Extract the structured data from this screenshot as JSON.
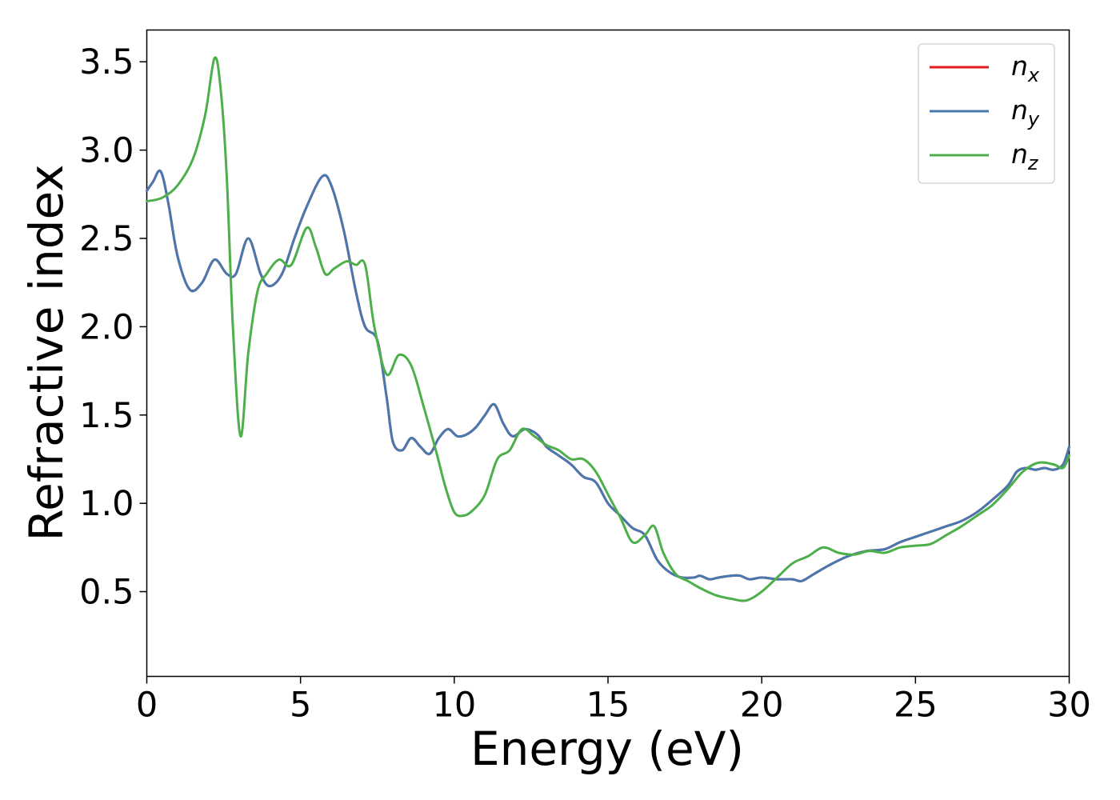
{
  "chart_data": {
    "type": "line",
    "xlabel": "Energy (eV)",
    "ylabel": "Refractive index",
    "xlim": [
      0,
      30
    ],
    "ylim": [
      0.02,
      3.68
    ],
    "xticks": [
      0,
      5,
      10,
      15,
      20,
      25,
      30
    ],
    "xtick_labels": [
      "0",
      "5",
      "10",
      "15",
      "20",
      "25",
      "30"
    ],
    "yticks": [
      0.5,
      1.0,
      1.5,
      2.0,
      2.5,
      3.0,
      3.5
    ],
    "ytick_labels": [
      "0.5",
      "1.0",
      "1.5",
      "2.0",
      "2.5",
      "3.0",
      "3.5"
    ],
    "grid": false,
    "legend_position": "top-right",
    "series": [
      {
        "name": "n",
        "subscript": "x",
        "color": "#e41a1c",
        "x": [
          0,
          0.2,
          0.45,
          0.7,
          1.0,
          1.4,
          1.8,
          2.2,
          2.6,
          2.9,
          3.3,
          3.7,
          4.0,
          4.4,
          4.8,
          5.2,
          5.7,
          6.0,
          6.4,
          6.8,
          7.1,
          7.5,
          7.8,
          8.0,
          8.3,
          8.6,
          8.9,
          9.2,
          9.5,
          9.8,
          10.1,
          10.4,
          10.7,
          11.0,
          11.3,
          11.6,
          11.9,
          12.3,
          12.7,
          13.0,
          13.4,
          13.8,
          14.2,
          14.6,
          15.0,
          15.4,
          15.8,
          16.2,
          16.6,
          17.0,
          17.4,
          17.8,
          18.0,
          18.3,
          18.6,
          19.0,
          19.3,
          19.6,
          20.0,
          20.5,
          21.0,
          21.3,
          21.7,
          22.2,
          22.8,
          23.4,
          24.0,
          24.5,
          25.0,
          25.5,
          26.0,
          26.5,
          27.0,
          27.5,
          28.0,
          28.3,
          28.6,
          28.9,
          29.2,
          29.5,
          29.8,
          30.0
        ],
        "y": [
          2.77,
          2.82,
          2.88,
          2.7,
          2.4,
          2.21,
          2.25,
          2.38,
          2.3,
          2.3,
          2.5,
          2.3,
          2.23,
          2.3,
          2.5,
          2.68,
          2.85,
          2.8,
          2.55,
          2.2,
          2.0,
          1.92,
          1.6,
          1.35,
          1.3,
          1.37,
          1.32,
          1.28,
          1.37,
          1.42,
          1.38,
          1.39,
          1.43,
          1.5,
          1.56,
          1.45,
          1.38,
          1.42,
          1.39,
          1.32,
          1.27,
          1.22,
          1.15,
          1.12,
          1.0,
          0.93,
          0.86,
          0.82,
          0.68,
          0.61,
          0.58,
          0.58,
          0.59,
          0.57,
          0.58,
          0.59,
          0.59,
          0.57,
          0.58,
          0.57,
          0.57,
          0.56,
          0.6,
          0.65,
          0.7,
          0.73,
          0.74,
          0.78,
          0.81,
          0.84,
          0.87,
          0.9,
          0.95,
          1.02,
          1.1,
          1.18,
          1.2,
          1.19,
          1.2,
          1.19,
          1.22,
          1.32
        ]
      },
      {
        "name": "n",
        "subscript": "y",
        "color": "#4878b0",
        "x": [
          0,
          0.2,
          0.45,
          0.7,
          1.0,
          1.4,
          1.8,
          2.2,
          2.6,
          2.9,
          3.3,
          3.7,
          4.0,
          4.4,
          4.8,
          5.2,
          5.7,
          6.0,
          6.4,
          6.8,
          7.1,
          7.5,
          7.8,
          8.0,
          8.3,
          8.6,
          8.9,
          9.2,
          9.5,
          9.8,
          10.1,
          10.4,
          10.7,
          11.0,
          11.3,
          11.6,
          11.9,
          12.3,
          12.7,
          13.0,
          13.4,
          13.8,
          14.2,
          14.6,
          15.0,
          15.4,
          15.8,
          16.2,
          16.6,
          17.0,
          17.4,
          17.8,
          18.0,
          18.3,
          18.6,
          19.0,
          19.3,
          19.6,
          20.0,
          20.5,
          21.0,
          21.3,
          21.7,
          22.2,
          22.8,
          23.4,
          24.0,
          24.5,
          25.0,
          25.5,
          26.0,
          26.5,
          27.0,
          27.5,
          28.0,
          28.3,
          28.6,
          28.9,
          29.2,
          29.5,
          29.8,
          30.0
        ],
        "y": [
          2.77,
          2.82,
          2.88,
          2.7,
          2.4,
          2.21,
          2.25,
          2.38,
          2.3,
          2.3,
          2.5,
          2.3,
          2.23,
          2.3,
          2.5,
          2.68,
          2.85,
          2.8,
          2.55,
          2.2,
          2.0,
          1.92,
          1.6,
          1.35,
          1.3,
          1.37,
          1.32,
          1.28,
          1.37,
          1.42,
          1.38,
          1.39,
          1.43,
          1.5,
          1.56,
          1.45,
          1.38,
          1.42,
          1.39,
          1.32,
          1.27,
          1.22,
          1.15,
          1.12,
          1.0,
          0.93,
          0.86,
          0.82,
          0.68,
          0.61,
          0.58,
          0.58,
          0.59,
          0.57,
          0.58,
          0.59,
          0.59,
          0.57,
          0.58,
          0.57,
          0.57,
          0.56,
          0.6,
          0.65,
          0.7,
          0.73,
          0.74,
          0.78,
          0.81,
          0.84,
          0.87,
          0.9,
          0.95,
          1.02,
          1.1,
          1.18,
          1.2,
          1.19,
          1.2,
          1.19,
          1.22,
          1.32
        ]
      },
      {
        "name": "n",
        "subscript": "z",
        "color": "#4daf4a",
        "x": [
          0,
          0.5,
          1.0,
          1.5,
          1.9,
          2.2,
          2.4,
          2.6,
          2.8,
          3.05,
          3.3,
          3.6,
          3.9,
          4.3,
          4.7,
          5.2,
          5.5,
          5.8,
          6.1,
          6.5,
          6.8,
          7.1,
          7.4,
          7.8,
          8.2,
          8.6,
          9.0,
          9.4,
          9.7,
          10.0,
          10.3,
          10.6,
          11.0,
          11.4,
          11.8,
          12.2,
          12.6,
          13.0,
          13.4,
          13.8,
          14.2,
          14.6,
          15.0,
          15.4,
          15.8,
          16.2,
          16.5,
          16.8,
          17.2,
          17.6,
          18.0,
          18.5,
          19.0,
          19.5,
          20.0,
          20.5,
          21.0,
          21.5,
          22.0,
          22.5,
          23.0,
          23.5,
          24.0,
          24.5,
          25.0,
          25.5,
          26.0,
          26.5,
          27.0,
          27.5,
          28.0,
          28.5,
          29.0,
          29.5,
          29.8,
          30.0
        ],
        "y": [
          2.71,
          2.73,
          2.8,
          2.95,
          3.2,
          3.52,
          3.35,
          2.85,
          2.0,
          1.38,
          1.85,
          2.2,
          2.3,
          2.38,
          2.35,
          2.56,
          2.45,
          2.3,
          2.33,
          2.37,
          2.35,
          2.35,
          2.0,
          1.73,
          1.84,
          1.78,
          1.55,
          1.3,
          1.1,
          0.95,
          0.93,
          0.96,
          1.05,
          1.25,
          1.3,
          1.42,
          1.38,
          1.33,
          1.3,
          1.25,
          1.25,
          1.18,
          1.05,
          0.92,
          0.78,
          0.82,
          0.87,
          0.72,
          0.6,
          0.56,
          0.52,
          0.48,
          0.46,
          0.45,
          0.5,
          0.58,
          0.66,
          0.7,
          0.75,
          0.72,
          0.71,
          0.73,
          0.72,
          0.75,
          0.76,
          0.77,
          0.82,
          0.87,
          0.93,
          0.99,
          1.08,
          1.18,
          1.23,
          1.22,
          1.2,
          1.27
        ]
      }
    ]
  }
}
